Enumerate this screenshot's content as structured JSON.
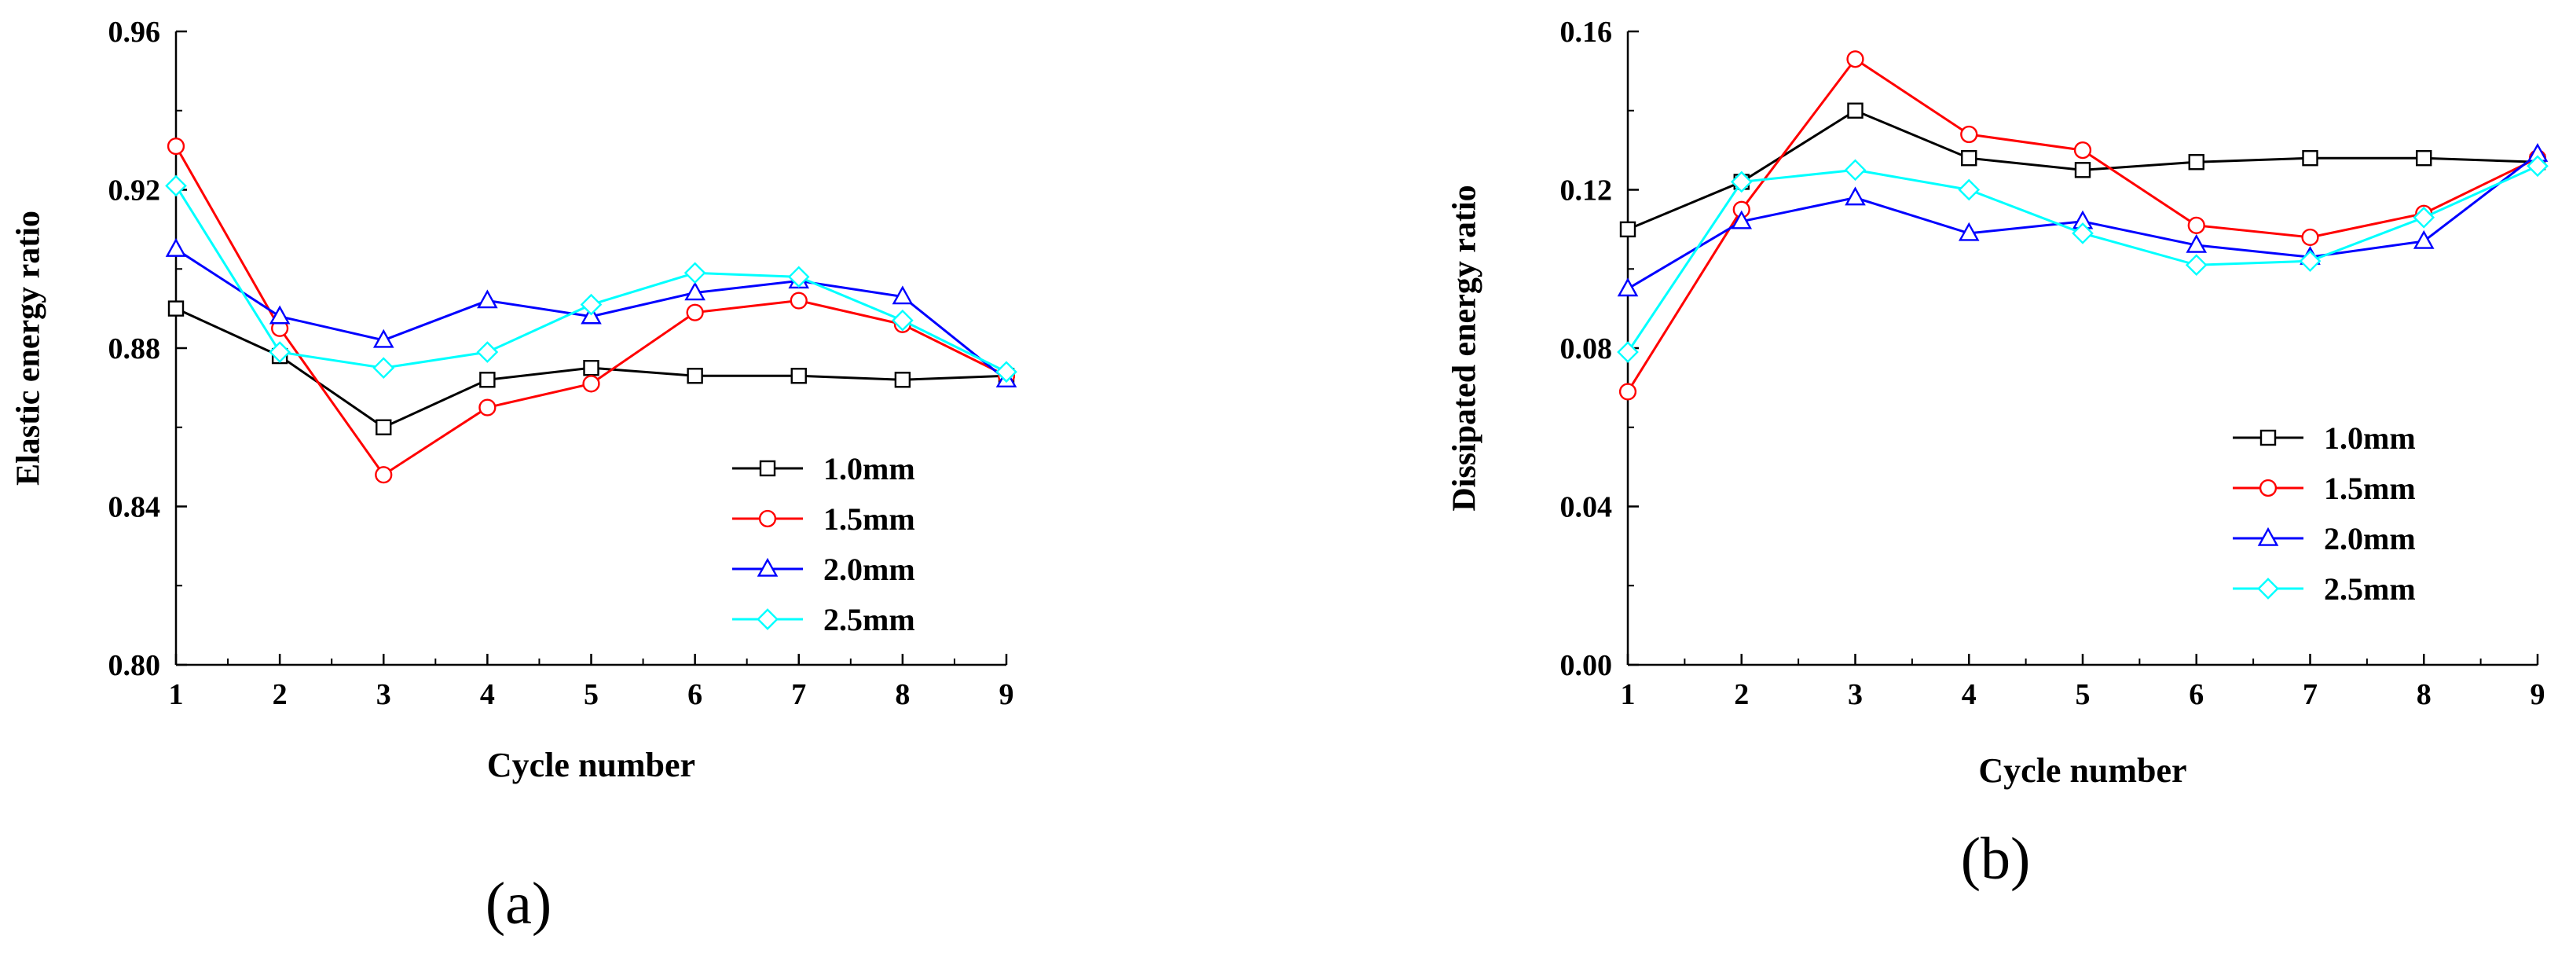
{
  "chart_data": [
    {
      "type": "line",
      "panel_label": "(a)",
      "title": "",
      "xlabel": "Cycle number",
      "ylabel": "Elastic energy ratio",
      "xlim": [
        1,
        9
      ],
      "ylim": [
        0.8,
        0.96
      ],
      "xticks": [
        "1",
        "2",
        "3",
        "4",
        "5",
        "6",
        "7",
        "8",
        "9"
      ],
      "yticks": [
        "0.80",
        "0.84",
        "0.88",
        "0.92",
        "0.96"
      ],
      "x": [
        1,
        2,
        3,
        4,
        5,
        6,
        7,
        8,
        9
      ],
      "legend_position": "lower-right",
      "series": [
        {
          "name": "1.0mm",
          "color": "#000000",
          "marker": "square",
          "values": [
            0.89,
            0.878,
            0.86,
            0.872,
            0.875,
            0.873,
            0.873,
            0.872,
            0.873
          ]
        },
        {
          "name": "1.5mm",
          "color": "#ff0000",
          "marker": "circle",
          "values": [
            0.931,
            0.885,
            0.848,
            0.865,
            0.871,
            0.889,
            0.892,
            0.886,
            0.873
          ]
        },
        {
          "name": "2.0mm",
          "color": "#0000ff",
          "marker": "triangle",
          "values": [
            0.905,
            0.888,
            0.882,
            0.892,
            0.888,
            0.894,
            0.897,
            0.893,
            0.872
          ]
        },
        {
          "name": "2.5mm",
          "color": "#00ffff",
          "marker": "diamond",
          "values": [
            0.921,
            0.879,
            0.875,
            0.879,
            0.891,
            0.899,
            0.898,
            0.887,
            0.874
          ]
        }
      ]
    },
    {
      "type": "line",
      "panel_label": "(b)",
      "title": "",
      "xlabel": "Cycle number",
      "ylabel": "Dissipated energy ratio",
      "xlim": [
        1,
        9
      ],
      "ylim": [
        0.0,
        0.16
      ],
      "xticks": [
        "1",
        "2",
        "3",
        "4",
        "5",
        "6",
        "7",
        "8",
        "9"
      ],
      "yticks": [
        "0.00",
        "0.04",
        "0.08",
        "0.12",
        "0.16"
      ],
      "x": [
        1,
        2,
        3,
        4,
        5,
        6,
        7,
        8,
        9
      ],
      "legend_position": "lower-right",
      "series": [
        {
          "name": "1.0mm",
          "color": "#000000",
          "marker": "square",
          "values": [
            0.11,
            0.122,
            0.14,
            0.128,
            0.125,
            0.127,
            0.128,
            0.128,
            0.127
          ]
        },
        {
          "name": "1.5mm",
          "color": "#ff0000",
          "marker": "circle",
          "values": [
            0.069,
            0.115,
            0.153,
            0.134,
            0.13,
            0.111,
            0.108,
            0.114,
            0.128
          ]
        },
        {
          "name": "2.0mm",
          "color": "#0000ff",
          "marker": "triangle",
          "values": [
            0.095,
            0.112,
            0.118,
            0.109,
            0.112,
            0.106,
            0.103,
            0.107,
            0.129
          ]
        },
        {
          "name": "2.5mm",
          "color": "#00ffff",
          "marker": "diamond",
          "values": [
            0.079,
            0.122,
            0.125,
            0.12,
            0.109,
            0.101,
            0.102,
            0.113,
            0.126
          ]
        }
      ]
    }
  ]
}
